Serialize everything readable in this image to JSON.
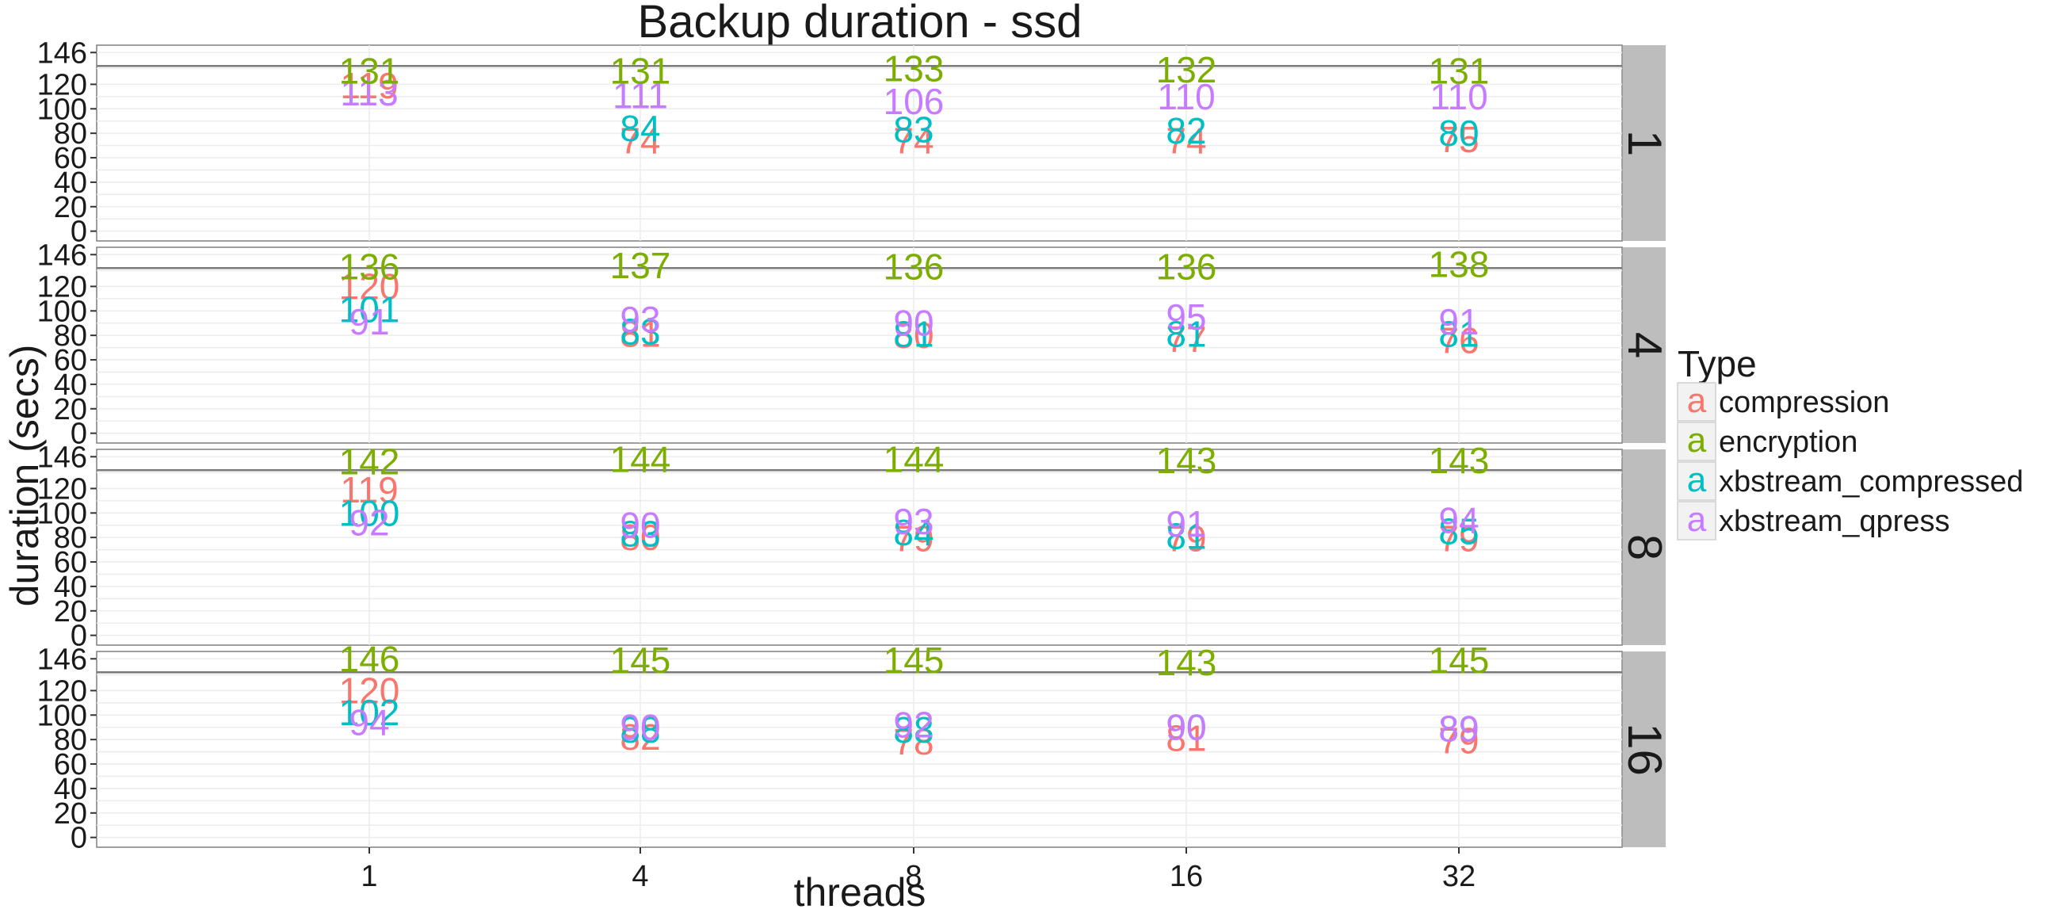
{
  "chart_data": {
    "type": "scatter",
    "title": "Backup duration - ssd",
    "xlabel": "threads",
    "ylabel": "duration (secs)",
    "x_categories": [
      "1",
      "4",
      "8",
      "16",
      "32"
    ],
    "y_ticks": [
      0,
      20,
      40,
      60,
      80,
      100,
      120,
      146
    ],
    "ylim": [
      -8,
      152
    ],
    "reference_line_y": 135,
    "grid": true,
    "legend_title": "Type",
    "legend_glyph": "a",
    "legend_position": "right",
    "series": [
      {
        "name": "compression",
        "color": "#f8766d"
      },
      {
        "name": "encryption",
        "color": "#7cae00"
      },
      {
        "name": "xbstream_compressed",
        "color": "#00bfc4"
      },
      {
        "name": "xbstream_qpress",
        "color": "#c77cff"
      }
    ],
    "panels": [
      {
        "label": "1",
        "values": {
          "compression": [
            119,
            74,
            74,
            74,
            75
          ],
          "encryption": [
            131,
            131,
            133,
            132,
            131
          ],
          "xbstream_compressed": [
            null,
            84,
            83,
            82,
            80
          ],
          "xbstream_qpress": [
            113,
            111,
            106,
            110,
            110
          ]
        }
      },
      {
        "label": "4",
        "values": {
          "compression": [
            120,
            81,
            80,
            77,
            76
          ],
          "encryption": [
            136,
            137,
            136,
            136,
            138
          ],
          "xbstream_compressed": [
            101,
            83,
            81,
            81,
            81
          ],
          "xbstream_qpress": [
            91,
            93,
            90,
            95,
            91
          ]
        }
      },
      {
        "label": "8",
        "values": {
          "compression": [
            119,
            80,
            79,
            79,
            79
          ],
          "encryption": [
            142,
            144,
            144,
            143,
            143
          ],
          "xbstream_compressed": [
            100,
            83,
            84,
            81,
            85
          ],
          "xbstream_qpress": [
            92,
            90,
            93,
            91,
            94
          ]
        }
      },
      {
        "label": "16",
        "values": {
          "compression": [
            120,
            82,
            78,
            81,
            79
          ],
          "encryption": [
            146,
            145,
            145,
            143,
            145
          ],
          "xbstream_compressed": [
            102,
            88,
            88,
            90,
            89
          ],
          "xbstream_qpress": [
            94,
            90,
            92,
            90,
            89
          ]
        }
      }
    ]
  }
}
